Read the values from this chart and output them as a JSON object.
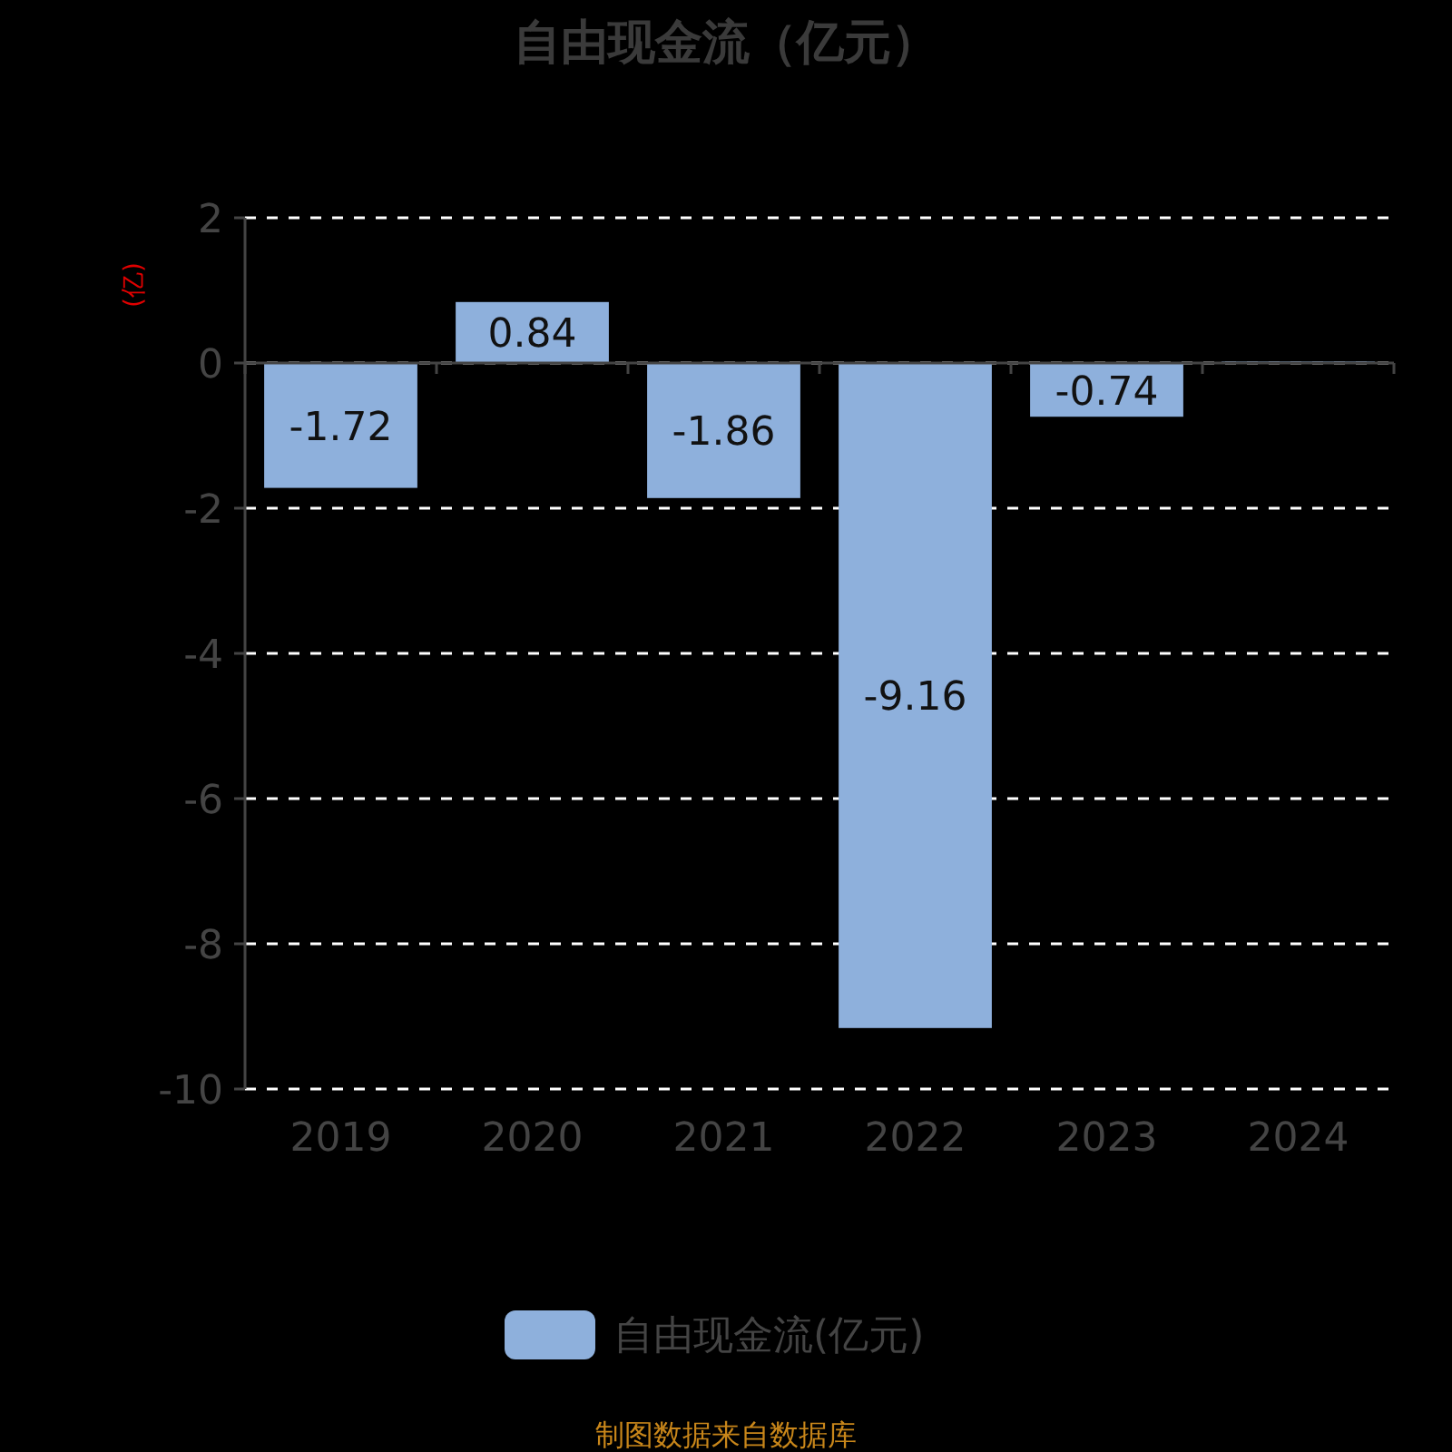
{
  "chart_data": {
    "type": "bar",
    "title": "自由现金流（亿元）",
    "ylabel": "(亿)",
    "categories": [
      "2019",
      "2020",
      "2021",
      "2022",
      "2023",
      "2024"
    ],
    "series": [
      {
        "name": "自由现金流(亿元)",
        "color": "#8eb0dc",
        "values": [
          -1.72,
          0.84,
          -1.86,
          -9.16,
          -0.74,
          0.02
        ],
        "value_labels": [
          "-1.72",
          "0.84",
          "-1.86",
          "-9.16",
          "-0.74",
          null
        ]
      }
    ],
    "ylim": [
      -10,
      2
    ],
    "yticks": [
      2,
      0,
      -2,
      -4,
      -6,
      -8,
      -10
    ],
    "grid": "y",
    "legend": "bottom",
    "annotations": [
      "制图数据来自数据库"
    ]
  }
}
